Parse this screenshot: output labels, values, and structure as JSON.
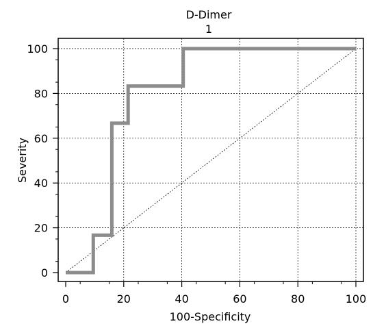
{
  "chart_data": {
    "type": "line",
    "title": "D-Dimer",
    "subtitle": "1",
    "xlabel": "100-Specificity",
    "ylabel": "Severity",
    "xlim": [
      0,
      100
    ],
    "ylim": [
      0,
      100
    ],
    "xticks": [
      0,
      20,
      40,
      60,
      80,
      100
    ],
    "yticks": [
      0,
      20,
      40,
      60,
      80,
      100
    ],
    "grid": true,
    "series": [
      {
        "color": "#8c8c8c",
        "x": [
          0,
          9.5,
          9.5,
          15.9,
          15.9,
          21.5,
          21.5,
          40.5,
          40.5,
          100
        ],
        "y": [
          0,
          0,
          16.7,
          16.7,
          66.7,
          66.7,
          83.3,
          83.3,
          100,
          100
        ]
      }
    ],
    "reference_line": {
      "x": [
        0,
        100
      ],
      "y": [
        0,
        100
      ],
      "style": "dashed"
    }
  }
}
